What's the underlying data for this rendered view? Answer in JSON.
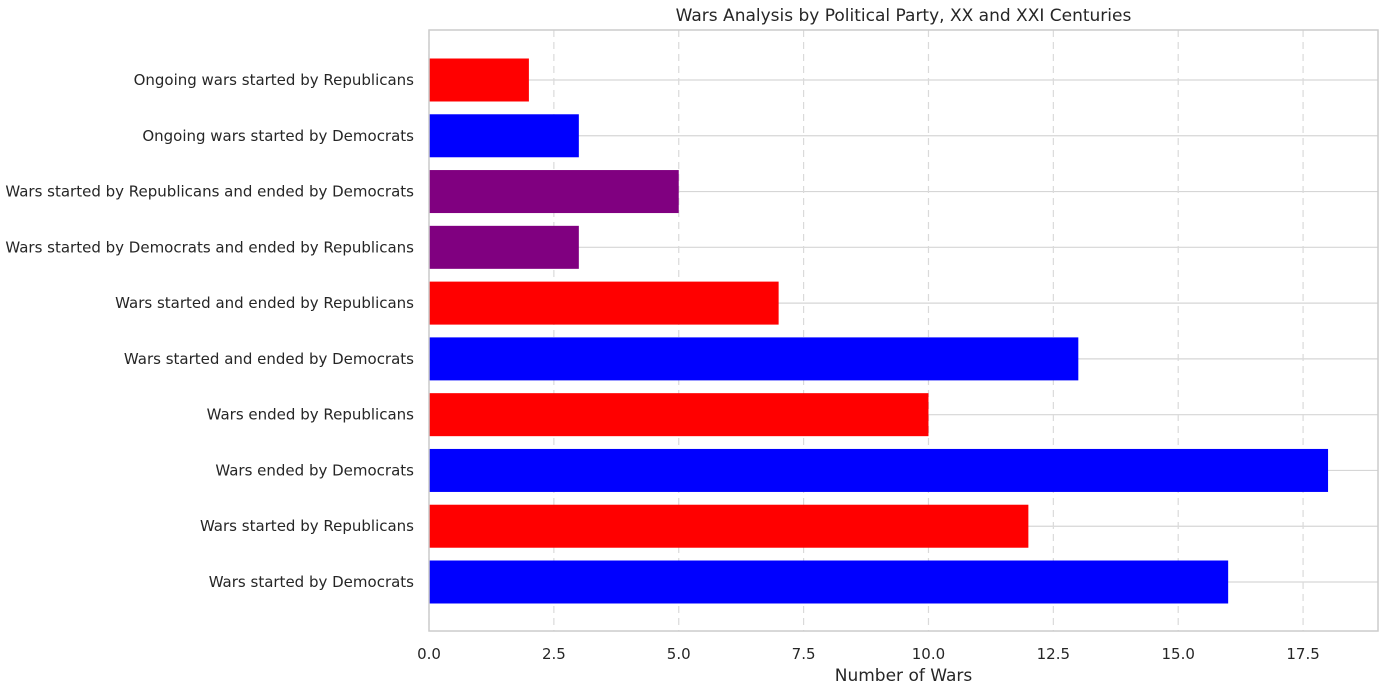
{
  "chart_data": {
    "type": "bar",
    "orientation": "horizontal",
    "title": "Wars Analysis by Political Party, XX and XXI Centuries",
    "xlabel": "Number of Wars",
    "ylabel": "",
    "xlim": [
      0,
      19
    ],
    "x_ticks": [
      "0.0",
      "2.5",
      "5.0",
      "7.5",
      "10.0",
      "12.5",
      "15.0",
      "17.5"
    ],
    "grid": {
      "x": true,
      "y": true,
      "x_style": "dashed"
    },
    "categories": [
      "Ongoing wars started by Republicans",
      "Ongoing wars started by Democrats",
      "Wars started by Republicans and ended by Democrats",
      "Wars started by Democrats and ended by Republicans",
      "Wars started and ended by Republicans",
      "Wars started and ended by Democrats",
      "Wars ended by Republicans",
      "Wars ended by Democrats",
      "Wars started by Republicans",
      "Wars started by Democrats"
    ],
    "values": [
      2,
      3,
      5,
      3,
      7,
      13,
      10,
      18,
      12,
      16
    ],
    "colors": [
      "#ff0000",
      "#0000ff",
      "#800080",
      "#800080",
      "#ff0000",
      "#0000ff",
      "#ff0000",
      "#0000ff",
      "#ff0000",
      "#0000ff"
    ]
  }
}
